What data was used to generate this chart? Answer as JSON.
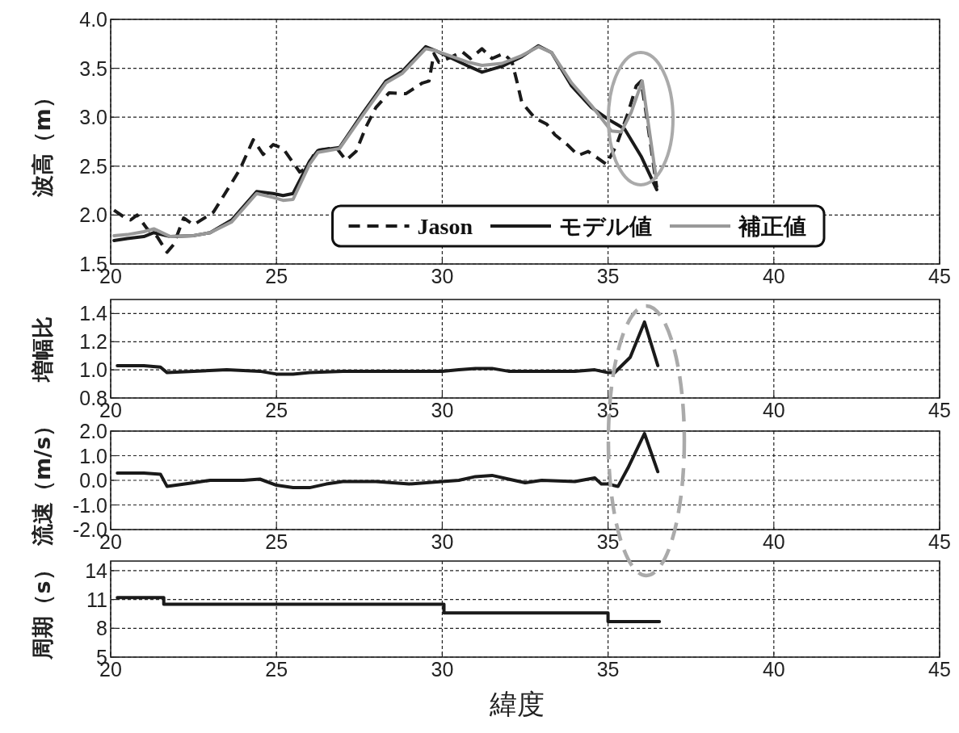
{
  "chart_data": [
    {
      "type": "line",
      "ylabel": "波高（m）",
      "xlim": [
        20,
        45
      ],
      "ylim": [
        1.5,
        4.0
      ],
      "xticks": [
        20,
        25,
        30,
        35,
        40,
        45
      ],
      "yticks": [
        {
          "value": 1.5,
          "label": "1.5"
        },
        {
          "value": 2.0,
          "label": "2.0"
        },
        {
          "value": 2.5,
          "label": "2.5"
        },
        {
          "value": 3.0,
          "label": "3.0"
        },
        {
          "value": 3.5,
          "label": "3.5"
        },
        {
          "value": 4.0,
          "label": "4.0"
        }
      ],
      "grid": true,
      "legend": "bottom right",
      "series": [
        {
          "name": "Jason",
          "color": "#1a1a1a",
          "line_style": "dashed",
          "x": [
            20.1,
            20.4,
            20.6,
            20.8,
            21.1,
            21.4,
            21.7,
            21.9,
            22.2,
            22.5,
            23.1,
            23.65,
            23.9,
            24.3,
            24.6,
            24.9,
            25.2,
            25.7,
            25.9,
            26.2,
            26.8,
            27.1,
            27.4,
            27.7,
            28.0,
            28.4,
            28.9,
            29.4,
            29.6,
            29.75,
            29.9,
            30.3,
            30.6,
            30.85,
            31.2,
            31.5,
            31.85,
            32.1,
            32.25,
            32.4,
            32.8,
            33.15,
            33.4,
            33.8,
            34.1,
            34.4,
            34.95,
            35.25,
            35.6,
            35.85,
            36.0,
            36.15,
            36.47
          ],
          "values": [
            2.05,
            1.98,
            1.95,
            2.0,
            1.86,
            1.78,
            1.62,
            1.7,
            1.97,
            1.9,
            2.03,
            2.33,
            2.47,
            2.77,
            2.62,
            2.72,
            2.68,
            2.44,
            2.48,
            2.66,
            2.69,
            2.56,
            2.65,
            2.9,
            3.1,
            3.25,
            3.24,
            3.35,
            3.37,
            3.65,
            3.56,
            3.62,
            3.67,
            3.6,
            3.7,
            3.6,
            3.65,
            3.57,
            3.37,
            3.15,
            2.99,
            2.93,
            2.82,
            2.71,
            2.61,
            2.65,
            2.52,
            2.71,
            3.04,
            3.32,
            3.37,
            3.04,
            2.28
          ]
        },
        {
          "name": "モデル値",
          "color": "#1a1a1a",
          "line_style": "solid",
          "x": [
            20.1,
            20.5,
            21.0,
            21.3,
            21.8,
            22.5,
            23.0,
            23.65,
            24.4,
            24.9,
            25.2,
            25.5,
            26.0,
            26.25,
            26.9,
            27.6,
            28.3,
            28.8,
            29.5,
            29.8,
            30.3,
            30.8,
            31.2,
            31.8,
            32.4,
            32.9,
            33.3,
            33.9,
            34.5,
            35.0,
            35.5,
            36.0,
            36.47
          ],
          "values": [
            1.74,
            1.76,
            1.78,
            1.82,
            1.78,
            1.79,
            1.82,
            1.95,
            2.24,
            2.22,
            2.2,
            2.22,
            2.55,
            2.66,
            2.69,
            3.04,
            3.37,
            3.47,
            3.72,
            3.68,
            3.6,
            3.52,
            3.46,
            3.52,
            3.62,
            3.73,
            3.66,
            3.32,
            3.1,
            2.98,
            2.88,
            2.6,
            2.26
          ]
        },
        {
          "name": "補正値",
          "color": "#999999",
          "line_style": "solid",
          "x": [
            20.1,
            20.5,
            21.0,
            21.3,
            21.8,
            22.5,
            23.0,
            23.65,
            24.4,
            24.9,
            25.2,
            25.5,
            26.0,
            26.25,
            26.9,
            27.6,
            28.3,
            28.8,
            29.5,
            29.8,
            30.3,
            30.8,
            31.2,
            31.8,
            32.4,
            32.9,
            33.3,
            33.9,
            34.5,
            35.1,
            35.4,
            35.7,
            36.03,
            36.45
          ],
          "values": [
            1.79,
            1.8,
            1.83,
            1.86,
            1.78,
            1.79,
            1.82,
            1.93,
            2.22,
            2.18,
            2.15,
            2.16,
            2.52,
            2.64,
            2.68,
            3.02,
            3.35,
            3.45,
            3.7,
            3.68,
            3.62,
            3.56,
            3.53,
            3.55,
            3.63,
            3.72,
            3.66,
            3.35,
            3.12,
            2.86,
            2.85,
            3.05,
            3.37,
            2.38
          ]
        }
      ]
    },
    {
      "type": "line",
      "ylabel": "増幅比",
      "xlim": [
        20,
        45
      ],
      "ylim": [
        0.8,
        1.5
      ],
      "xticks": [
        20,
        25,
        30,
        35,
        40,
        45
      ],
      "yticks": [
        {
          "value": 0.8,
          "label": "0.8"
        },
        {
          "value": 1.0,
          "label": "1.0"
        },
        {
          "value": 1.2,
          "label": "1.2"
        },
        {
          "value": 1.4,
          "label": "1.4"
        }
      ],
      "grid": true,
      "series": [
        {
          "color": "#1a1a1a",
          "x": [
            20.2,
            21.0,
            21.5,
            21.7,
            22.5,
            23.5,
            24.5,
            25.0,
            25.5,
            26.0,
            27.0,
            28.0,
            29.0,
            30.0,
            30.5,
            31.0,
            31.5,
            32.0,
            33.0,
            34.0,
            34.6,
            35.0,
            35.2,
            35.67,
            36.1,
            36.5
          ],
          "values": [
            1.03,
            1.03,
            1.02,
            0.98,
            0.99,
            1.0,
            0.99,
            0.97,
            0.97,
            0.98,
            0.99,
            0.99,
            0.99,
            0.99,
            1.0,
            1.01,
            1.01,
            0.99,
            0.99,
            0.99,
            1.0,
            0.98,
            0.98,
            1.09,
            1.34,
            1.03
          ]
        }
      ]
    },
    {
      "type": "line",
      "ylabel": "流速（m/s）",
      "xlim": [
        20,
        45
      ],
      "ylim": [
        -2.0,
        2.0
      ],
      "xticks": [
        20,
        25,
        30,
        35,
        40,
        45
      ],
      "yticks": [
        {
          "value": -2.0,
          "label": "-2.0"
        },
        {
          "value": -1.0,
          "label": "-1.0"
        },
        {
          "value": 0.0,
          "label": "0.0"
        },
        {
          "value": 1.0,
          "label": "1.0"
        },
        {
          "value": 2.0,
          "label": "2.0"
        }
      ],
      "grid": true,
      "series": [
        {
          "color": "#1a1a1a",
          "x": [
            20.2,
            21.0,
            21.5,
            21.7,
            22.5,
            23.0,
            24.0,
            24.5,
            25.0,
            25.5,
            26.0,
            26.5,
            27.0,
            28.0,
            29.0,
            30.0,
            30.5,
            31.0,
            31.5,
            32.0,
            32.5,
            33.0,
            34.0,
            34.6,
            34.8,
            35.0,
            35.3,
            35.6,
            36.1,
            36.5
          ],
          "values": [
            0.3,
            0.3,
            0.25,
            -0.25,
            -0.1,
            0.0,
            0.0,
            0.05,
            -0.2,
            -0.3,
            -0.3,
            -0.15,
            -0.05,
            -0.05,
            -0.15,
            -0.05,
            0.0,
            0.15,
            0.2,
            0.05,
            -0.1,
            0.0,
            -0.05,
            0.1,
            -0.15,
            -0.15,
            -0.25,
            0.5,
            1.9,
            0.35
          ]
        }
      ]
    },
    {
      "type": "step",
      "ylabel": "周期（s）",
      "xlabel": "緯度",
      "xlim": [
        20,
        45
      ],
      "ylim": [
        5,
        15
      ],
      "xticks": [
        20,
        25,
        30,
        35,
        40,
        45
      ],
      "yticks": [
        5,
        8,
        11,
        14
      ],
      "grid": true,
      "series": [
        {
          "color": "#1a1a1a",
          "x": [
            20.2,
            21.6,
            30.05,
            35.0,
            36.55
          ],
          "values": [
            11.2,
            10.5,
            9.6,
            8.7,
            8.7
          ]
        }
      ]
    }
  ]
}
